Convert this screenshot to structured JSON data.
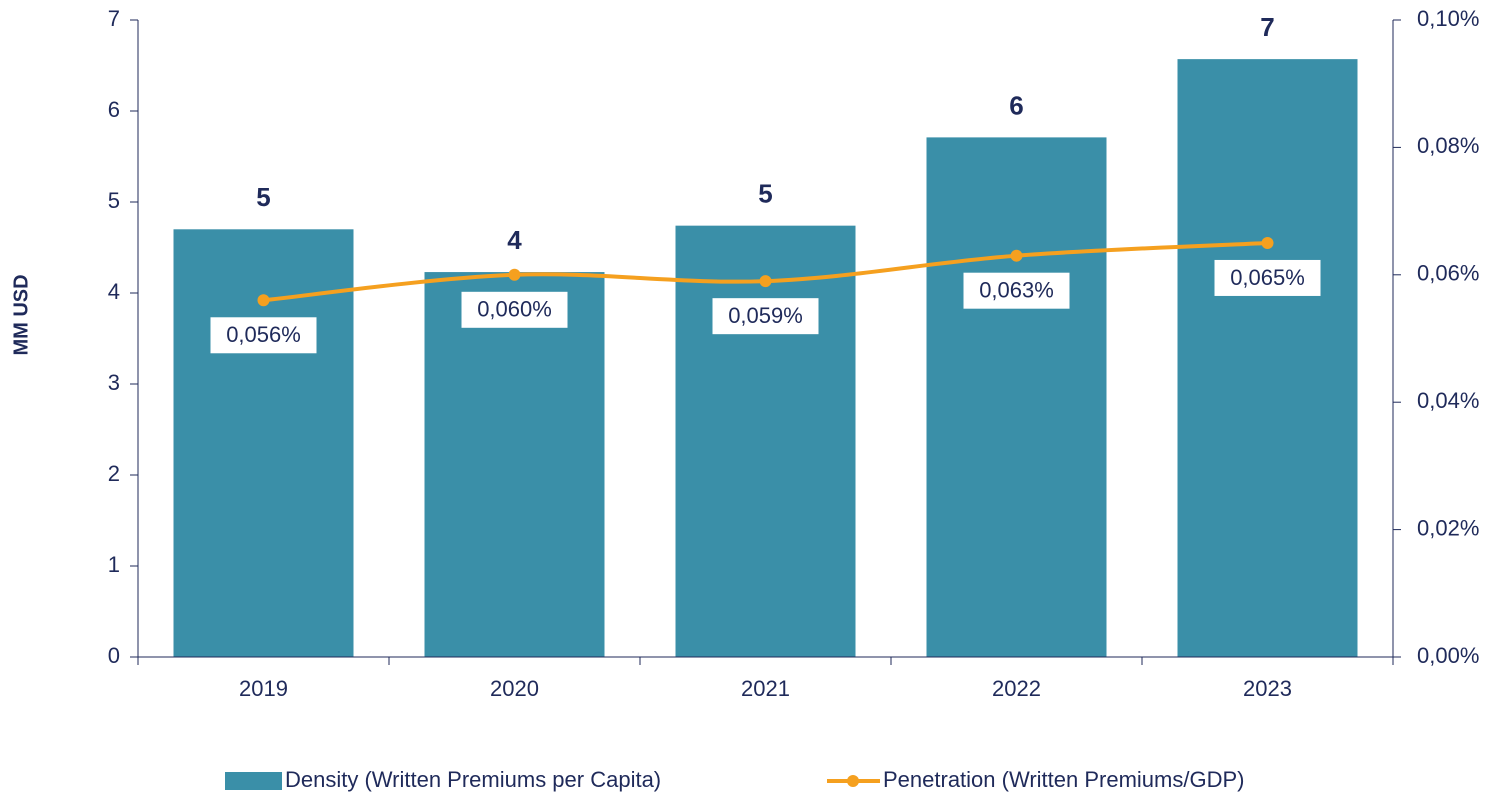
{
  "chart_data": {
    "type": "bar_line",
    "categories": [
      "2019",
      "2020",
      "2021",
      "2022",
      "2023"
    ],
    "ylabel": "MM USD",
    "ylim": [
      0,
      7
    ],
    "yticks": [
      0,
      1,
      2,
      3,
      4,
      5,
      6,
      7
    ],
    "y2lim": [
      0,
      0.1
    ],
    "y2ticks": [
      {
        "value": 0,
        "label": "0,00%"
      },
      {
        "value": 0.02,
        "label": "0,02%"
      },
      {
        "value": 0.04,
        "label": "0,04%"
      },
      {
        "value": 0.06,
        "label": "0,06%"
      },
      {
        "value": 0.08,
        "label": "0,08%"
      },
      {
        "value": 0.1,
        "label": "0,10%"
      }
    ],
    "series": [
      {
        "name": "Density (Written Premiums per Capita)",
        "type": "bar",
        "color": "#3a8fa8",
        "values": [
          4.7,
          4.23,
          4.74,
          5.71,
          6.57
        ],
        "value_labels": [
          "5",
          "4",
          "5",
          "6",
          "7"
        ]
      },
      {
        "name": "Penetration (Written Premiums/GDP)",
        "type": "line",
        "axis": "y2",
        "color": "#f5a01f",
        "values": [
          0.056,
          0.06,
          0.059,
          0.063,
          0.065
        ],
        "value_labels": [
          "0,056%",
          "0,060%",
          "0,059%",
          "0,063%",
          "0,065%"
        ]
      }
    ],
    "legend": "bottom"
  }
}
